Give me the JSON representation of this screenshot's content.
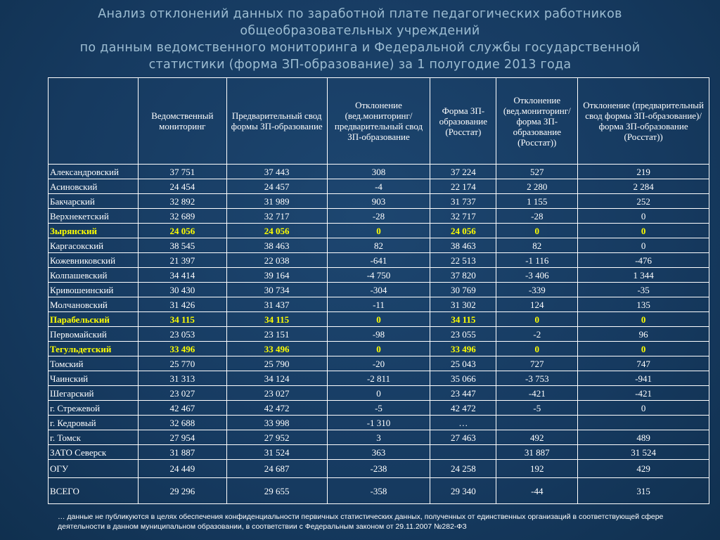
{
  "title_lines": [
    "Анализ отклонений данных по заработной плате педагогических работников",
    "общеобразовательных учреждений",
    "по данным ведомственного мониторинга и Федеральной службы государственной",
    "статистики (форма ЗП-образование) за 1 полугодие 2013 года"
  ],
  "table": {
    "header": [
      null,
      "Ведомственный мониторинг",
      "Предварительный свод формы ЗП-образование",
      "Отклонение (вед.мониторинг/предварительный свод ЗП-образование",
      "Форма ЗП-образование (Росстат)",
      "Отклонение (вед.мониторинг/форма ЗП-образование (Росстат))",
      "Отклонение (предварительный свод формы ЗП-образование)/форма ЗП-образование (Росстат))"
    ],
    "highlighted_rows": [
      4,
      10,
      12
    ],
    "rows": [
      [
        "Александровский",
        "37 751",
        "37 443",
        "308",
        "37 224",
        "527",
        "219"
      ],
      [
        "Асиновский",
        "24 454",
        "24 457",
        "-4",
        "22 174",
        "2 280",
        "2 284"
      ],
      [
        "Бакчарский",
        "32 892",
        "31 989",
        "903",
        "31 737",
        "1 155",
        "252"
      ],
      [
        "Верхнекетский",
        "32 689",
        "32 717",
        "-28",
        "32 717",
        "-28",
        "0"
      ],
      [
        "Зырянский",
        "24 056",
        "24 056",
        "0",
        "24 056",
        "0",
        "0"
      ],
      [
        "Каргасокский",
        "38 545",
        "38 463",
        "82",
        "38 463",
        "82",
        "0"
      ],
      [
        "Кожевниковский",
        "21 397",
        "22 038",
        "-641",
        "22 513",
        "-1 116",
        "-476"
      ],
      [
        "Колпашевский",
        "34 414",
        "39 164",
        "-4 750",
        "37 820",
        "-3 406",
        "1 344"
      ],
      [
        "Кривошеинский",
        "30 430",
        "30 734",
        "-304",
        "30 769",
        "-339",
        "-35"
      ],
      [
        "Молчановский",
        "31 426",
        "31 437",
        "-11",
        "31 302",
        "124",
        "135"
      ],
      [
        "Парабельский",
        "34 115",
        "34 115",
        "0",
        "34 115",
        "0",
        "0"
      ],
      [
        "Первомайский",
        "23 053",
        "23 151",
        "-98",
        "23 055",
        "-2",
        "96"
      ],
      [
        "Тегульдетский",
        "33 496",
        "33 496",
        "0",
        "33 496",
        "0",
        "0"
      ],
      [
        "Томский",
        "25 770",
        "25 790",
        "-20",
        "25 043",
        "727",
        "747"
      ],
      [
        "Чаинский",
        "31 313",
        "34 124",
        "-2 811",
        "35 066",
        "-3 753",
        "-941"
      ],
      [
        "Шегарский",
        "23 027",
        "23 027",
        "0",
        "23 447",
        "-421",
        "-421"
      ],
      [
        "г. Стрежевой",
        "42 467",
        "42 472",
        "-5",
        "42 472",
        "-5",
        "0"
      ],
      [
        "г. Кедровый",
        "32 688",
        "33 998",
        "-1 310",
        "…",
        null,
        null
      ],
      [
        "г. Томск",
        "27 954",
        "27 952",
        "3",
        "27 463",
        "492",
        "489"
      ],
      [
        "ЗАТО Северск",
        "31 887",
        "31 524",
        "363",
        null,
        "31 887",
        "31 524"
      ],
      [
        "ОГУ",
        "24 449",
        "24 687",
        "-238",
        "24 258",
        "192",
        "429"
      ],
      [
        "ВСЕГО",
        "29 296",
        "29 655",
        "-358",
        "29 340",
        "-44",
        "315"
      ]
    ]
  },
  "footnote": "… данные не публикуются в целях обеспечения конфиденциальности первичных статистических данных, полученных от единственных организаций в соответствующей сфере деятельности в данном муниципальном образовании, в соответствии с Федеральным законом от 29.11.2007 №282-ФЗ"
}
